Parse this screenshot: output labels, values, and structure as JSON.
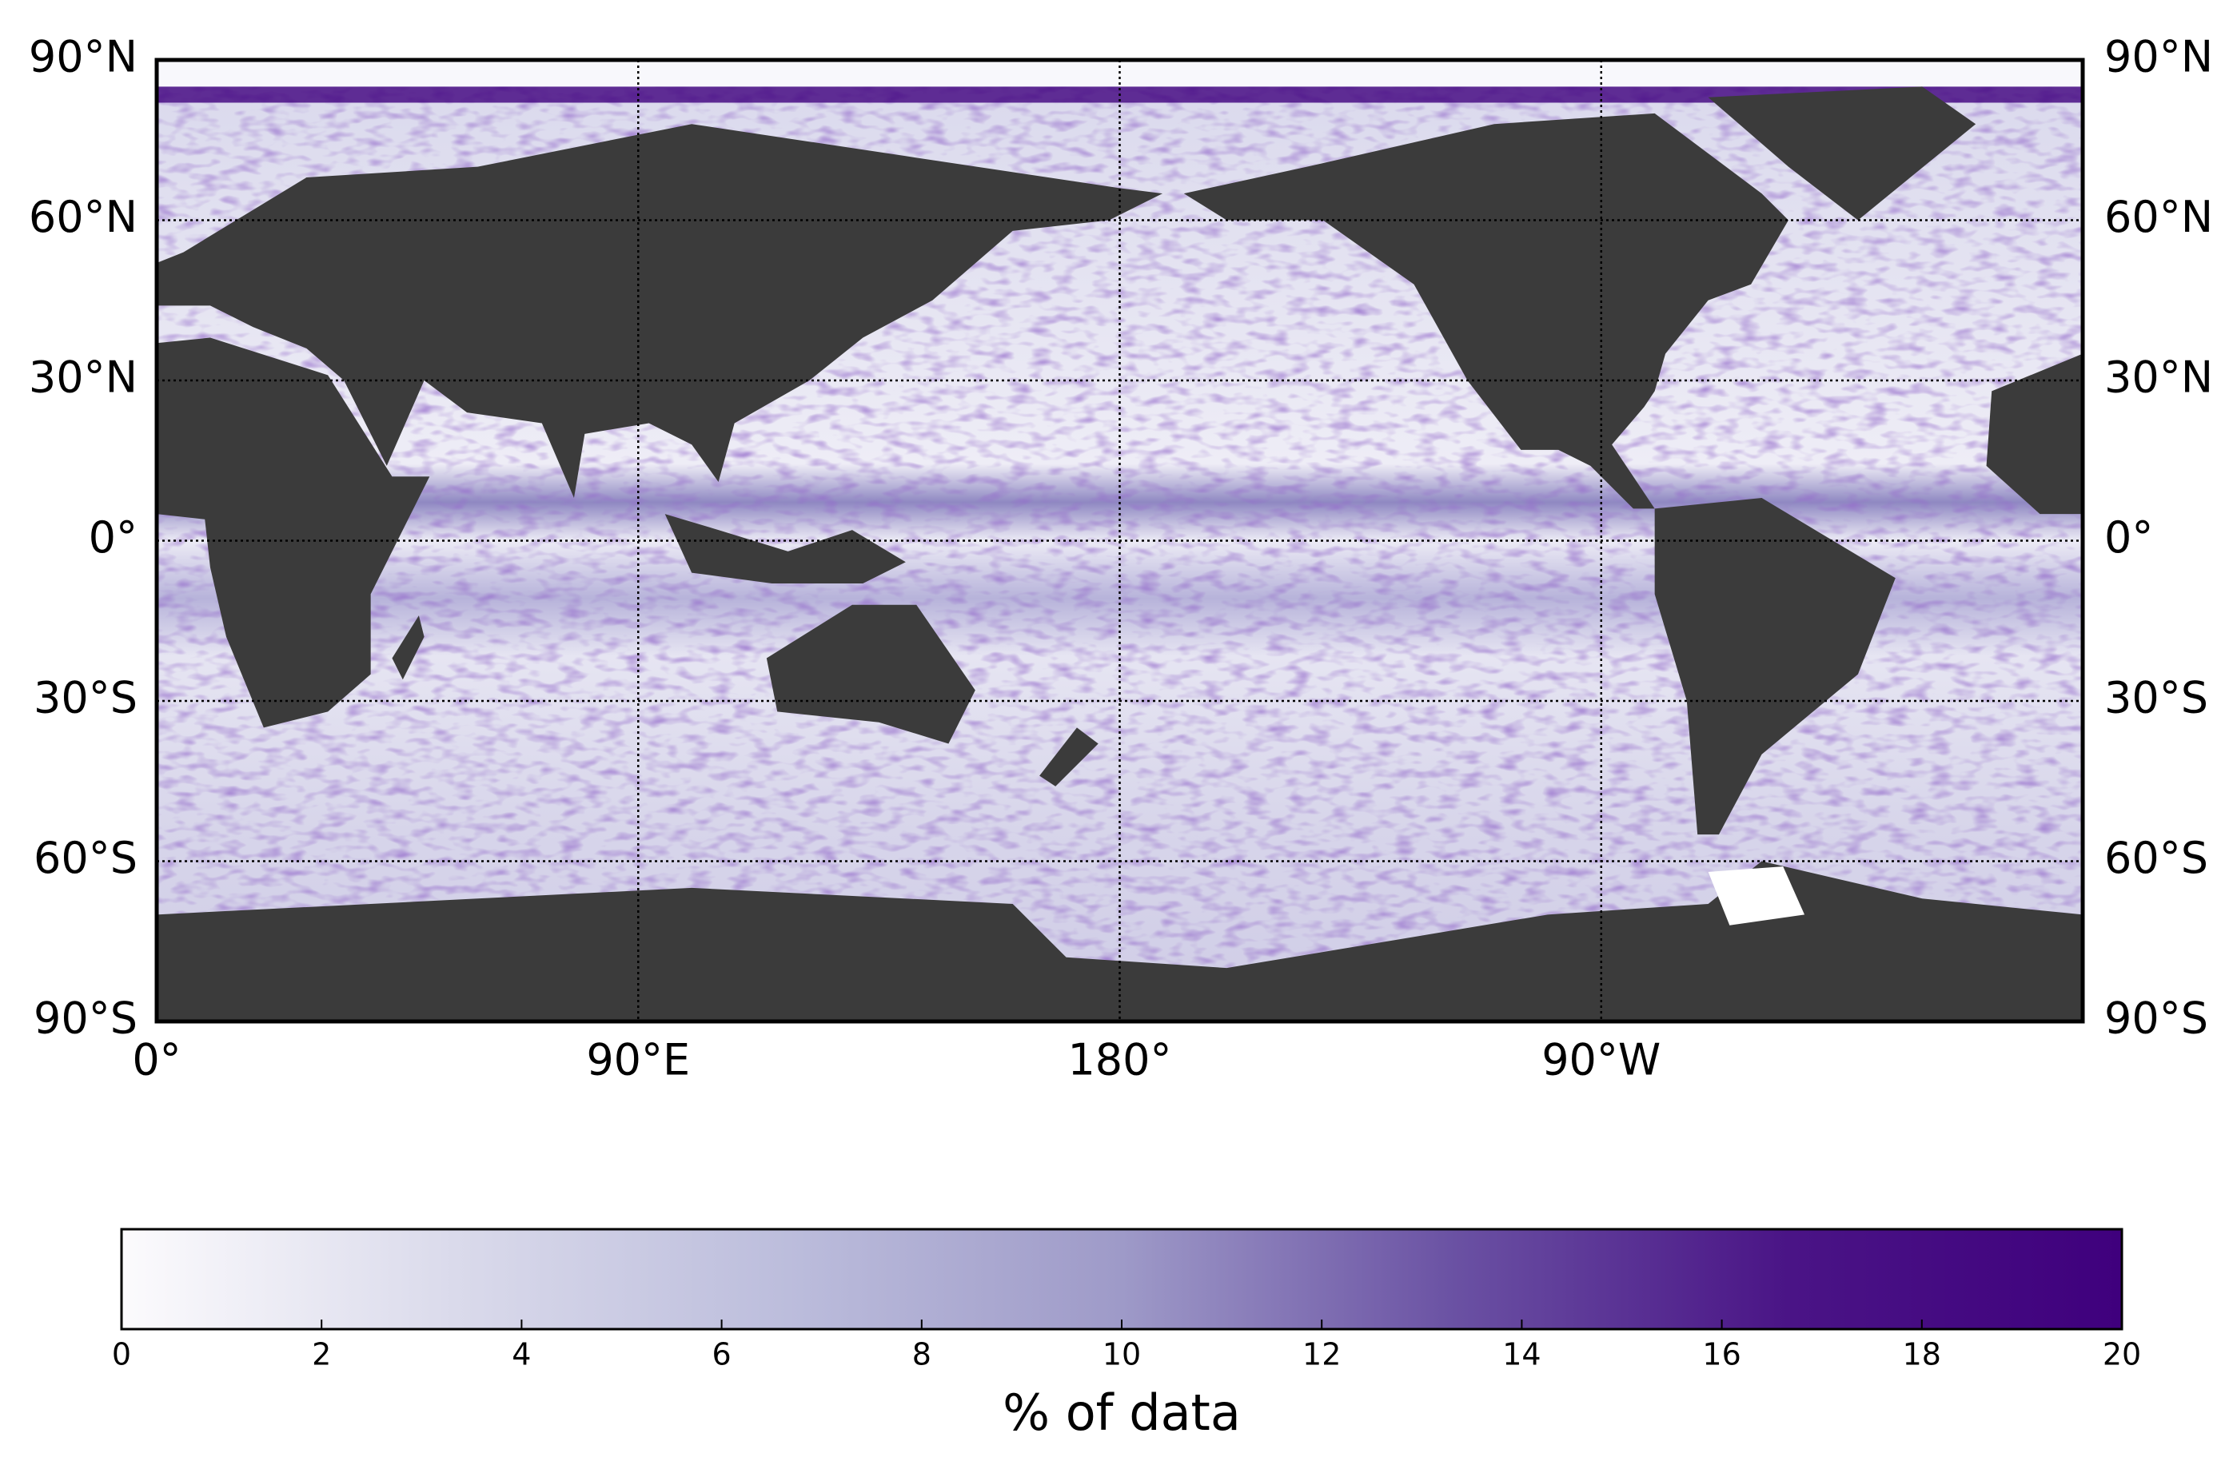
{
  "map": {
    "lonlim": [
      0,
      360
    ],
    "latlim": [
      -90,
      90
    ],
    "lon_ticks": [
      {
        "value": 0,
        "label": "0°"
      },
      {
        "value": 90,
        "label": "90°E"
      },
      {
        "value": 180,
        "label": "180°"
      },
      {
        "value": 270,
        "label": "90°W"
      }
    ],
    "lat_ticks": [
      {
        "value": 90,
        "label": "90°N"
      },
      {
        "value": 60,
        "label": "60°N"
      },
      {
        "value": 30,
        "label": "30°N"
      },
      {
        "value": 0,
        "label": "0°"
      },
      {
        "value": -30,
        "label": "30°S"
      },
      {
        "value": -60,
        "label": "60°S"
      },
      {
        "value": -90,
        "label": "90°S"
      }
    ],
    "grid": true
  },
  "colorbar": {
    "lim": [
      0,
      20
    ],
    "ticks": [
      0,
      2,
      4,
      6,
      8,
      10,
      12,
      14,
      16,
      18,
      20
    ],
    "label": "% of data",
    "colors": [
      "#fcfbfd",
      "#dadaeb",
      "#bcbddc",
      "#9e9ac8",
      "#6a51a3",
      "#4a1486",
      "#3f007d"
    ]
  }
}
